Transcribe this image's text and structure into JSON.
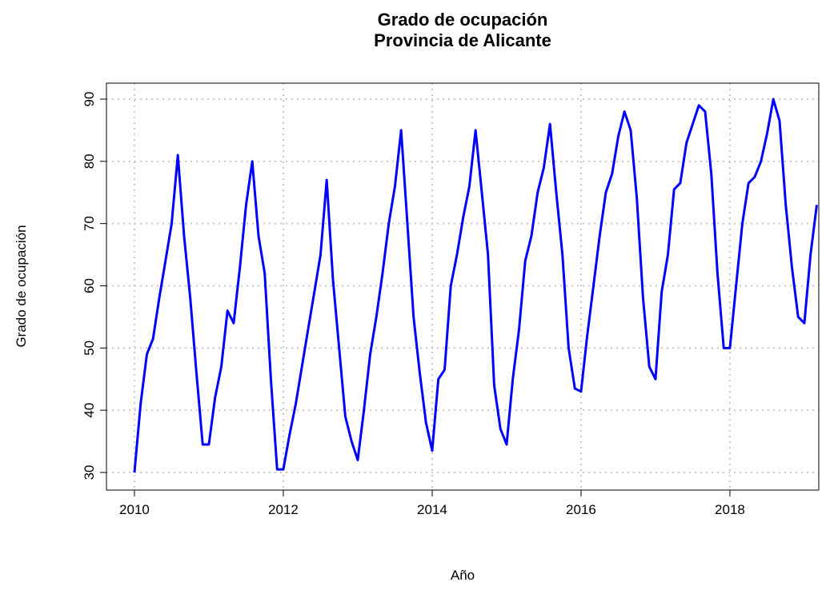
{
  "chart_data": {
    "type": "line",
    "title": "Grado de ocupación",
    "subtitle": "Provincia de Alicante",
    "x_label": "Año",
    "y_label": "Grado de ocupación",
    "x": [
      2010,
      2010.083,
      2010.167,
      2010.25,
      2010.333,
      2010.417,
      2010.5,
      2010.583,
      2010.667,
      2010.75,
      2010.833,
      2010.917,
      2011,
      2011.083,
      2011.167,
      2011.25,
      2011.333,
      2011.417,
      2011.5,
      2011.583,
      2011.667,
      2011.75,
      2011.833,
      2011.917,
      2012,
      2012.083,
      2012.167,
      2012.25,
      2012.333,
      2012.417,
      2012.5,
      2012.583,
      2012.667,
      2012.75,
      2012.833,
      2012.917,
      2013,
      2013.083,
      2013.167,
      2013.25,
      2013.333,
      2013.417,
      2013.5,
      2013.583,
      2013.667,
      2013.75,
      2013.833,
      2013.917,
      2014,
      2014.083,
      2014.167,
      2014.25,
      2014.333,
      2014.417,
      2014.5,
      2014.583,
      2014.667,
      2014.75,
      2014.833,
      2014.917,
      2015,
      2015.083,
      2015.167,
      2015.25,
      2015.333,
      2015.417,
      2015.5,
      2015.583,
      2015.667,
      2015.75,
      2015.833,
      2015.917,
      2016,
      2016.083,
      2016.167,
      2016.25,
      2016.333,
      2016.417,
      2016.5,
      2016.583,
      2016.667,
      2016.75,
      2016.833,
      2016.917,
      2017,
      2017.083,
      2017.167,
      2017.25,
      2017.333,
      2017.417,
      2017.5,
      2017.583,
      2017.667,
      2017.75,
      2017.833,
      2017.917,
      2018,
      2018.083,
      2018.167,
      2018.25,
      2018.333,
      2018.417,
      2018.5,
      2018.583,
      2018.667,
      2018.75,
      2018.833,
      2018.917,
      2019,
      2019.083,
      2019.167
    ],
    "series": [
      {
        "name": "Grado de ocupación",
        "color": "#0000ff",
        "values": [
          30,
          41,
          49,
          51.5,
          58,
          64,
          70,
          81,
          68,
          58,
          46,
          34.5,
          34.5,
          42,
          47,
          56,
          54,
          63,
          73,
          80,
          68,
          62,
          45,
          30.5,
          30.5,
          36,
          41,
          47,
          53,
          59,
          65,
          77,
          61,
          50,
          39,
          35,
          32,
          40,
          49,
          55,
          62,
          70,
          76,
          85,
          70,
          55,
          46,
          38,
          33.5,
          45,
          46.5,
          60,
          65,
          71,
          76,
          85,
          75,
          65,
          44,
          37,
          34.5,
          45,
          53,
          64,
          68,
          75,
          79,
          86,
          75,
          65,
          50,
          43.5,
          43,
          52,
          60,
          68,
          75,
          78,
          84,
          88,
          85,
          74,
          58,
          47,
          45,
          59,
          65,
          75.5,
          76.5,
          83,
          86,
          89,
          88,
          78,
          62,
          50,
          50,
          60,
          70,
          76.5,
          77.5,
          80,
          84.5,
          90,
          86.5,
          73,
          63,
          55,
          54,
          65,
          73
        ]
      }
    ],
    "xlim": [
      2009.624,
      2019.194
    ],
    "ylim": [
      27.17,
      92.57
    ],
    "xticks": [
      2010,
      2012,
      2014,
      2016,
      2018
    ],
    "yticks": [
      30,
      40,
      50,
      60,
      70,
      80,
      90
    ],
    "grid": true
  }
}
